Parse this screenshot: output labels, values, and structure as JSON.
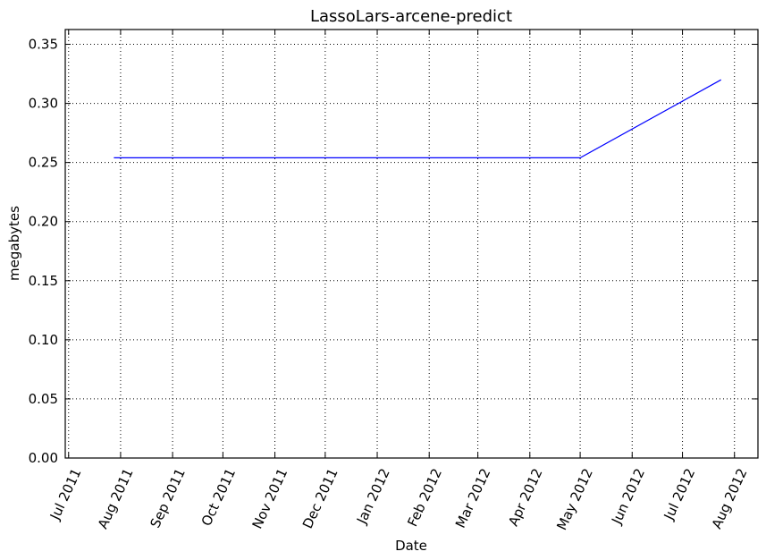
{
  "chart_data": {
    "type": "line",
    "title": "LassoLars-arcene-predict",
    "xlabel": "Date",
    "ylabel": "megabytes",
    "xlim": [
      "2011-06-29",
      "2012-08-15"
    ],
    "ylim": [
      0,
      0.3625
    ],
    "grid": true,
    "x_ticks": [
      {
        "date": "2011-07-01",
        "label": "Jul 2011"
      },
      {
        "date": "2011-08-01",
        "label": "Aug 2011"
      },
      {
        "date": "2011-09-01",
        "label": "Sep 2011"
      },
      {
        "date": "2011-10-01",
        "label": "Oct 2011"
      },
      {
        "date": "2011-11-01",
        "label": "Nov 2011"
      },
      {
        "date": "2011-12-01",
        "label": "Dec 2011"
      },
      {
        "date": "2012-01-01",
        "label": "Jan 2012"
      },
      {
        "date": "2012-02-01",
        "label": "Feb 2012"
      },
      {
        "date": "2012-03-01",
        "label": "Mar 2012"
      },
      {
        "date": "2012-04-01",
        "label": "Apr 2012"
      },
      {
        "date": "2012-05-01",
        "label": "May 2012"
      },
      {
        "date": "2012-06-01",
        "label": "Jun 2012"
      },
      {
        "date": "2012-07-01",
        "label": "Jul 2012"
      },
      {
        "date": "2012-08-01",
        "label": "Aug 2012"
      }
    ],
    "y_ticks": [
      {
        "value": 0.0,
        "label": "0.00"
      },
      {
        "value": 0.05,
        "label": "0.05"
      },
      {
        "value": 0.1,
        "label": "0.10"
      },
      {
        "value": 0.15,
        "label": "0.15"
      },
      {
        "value": 0.2,
        "label": "0.20"
      },
      {
        "value": 0.25,
        "label": "0.25"
      },
      {
        "value": 0.3,
        "label": "0.30"
      },
      {
        "value": 0.35,
        "label": "0.35"
      }
    ],
    "series": [
      {
        "color": "#0000ff",
        "points": [
          {
            "x": "2011-07-28",
            "y": 0.254
          },
          {
            "x": "2012-05-01",
            "y": 0.254
          },
          {
            "x": "2012-07-24",
            "y": 0.32
          }
        ]
      }
    ]
  }
}
